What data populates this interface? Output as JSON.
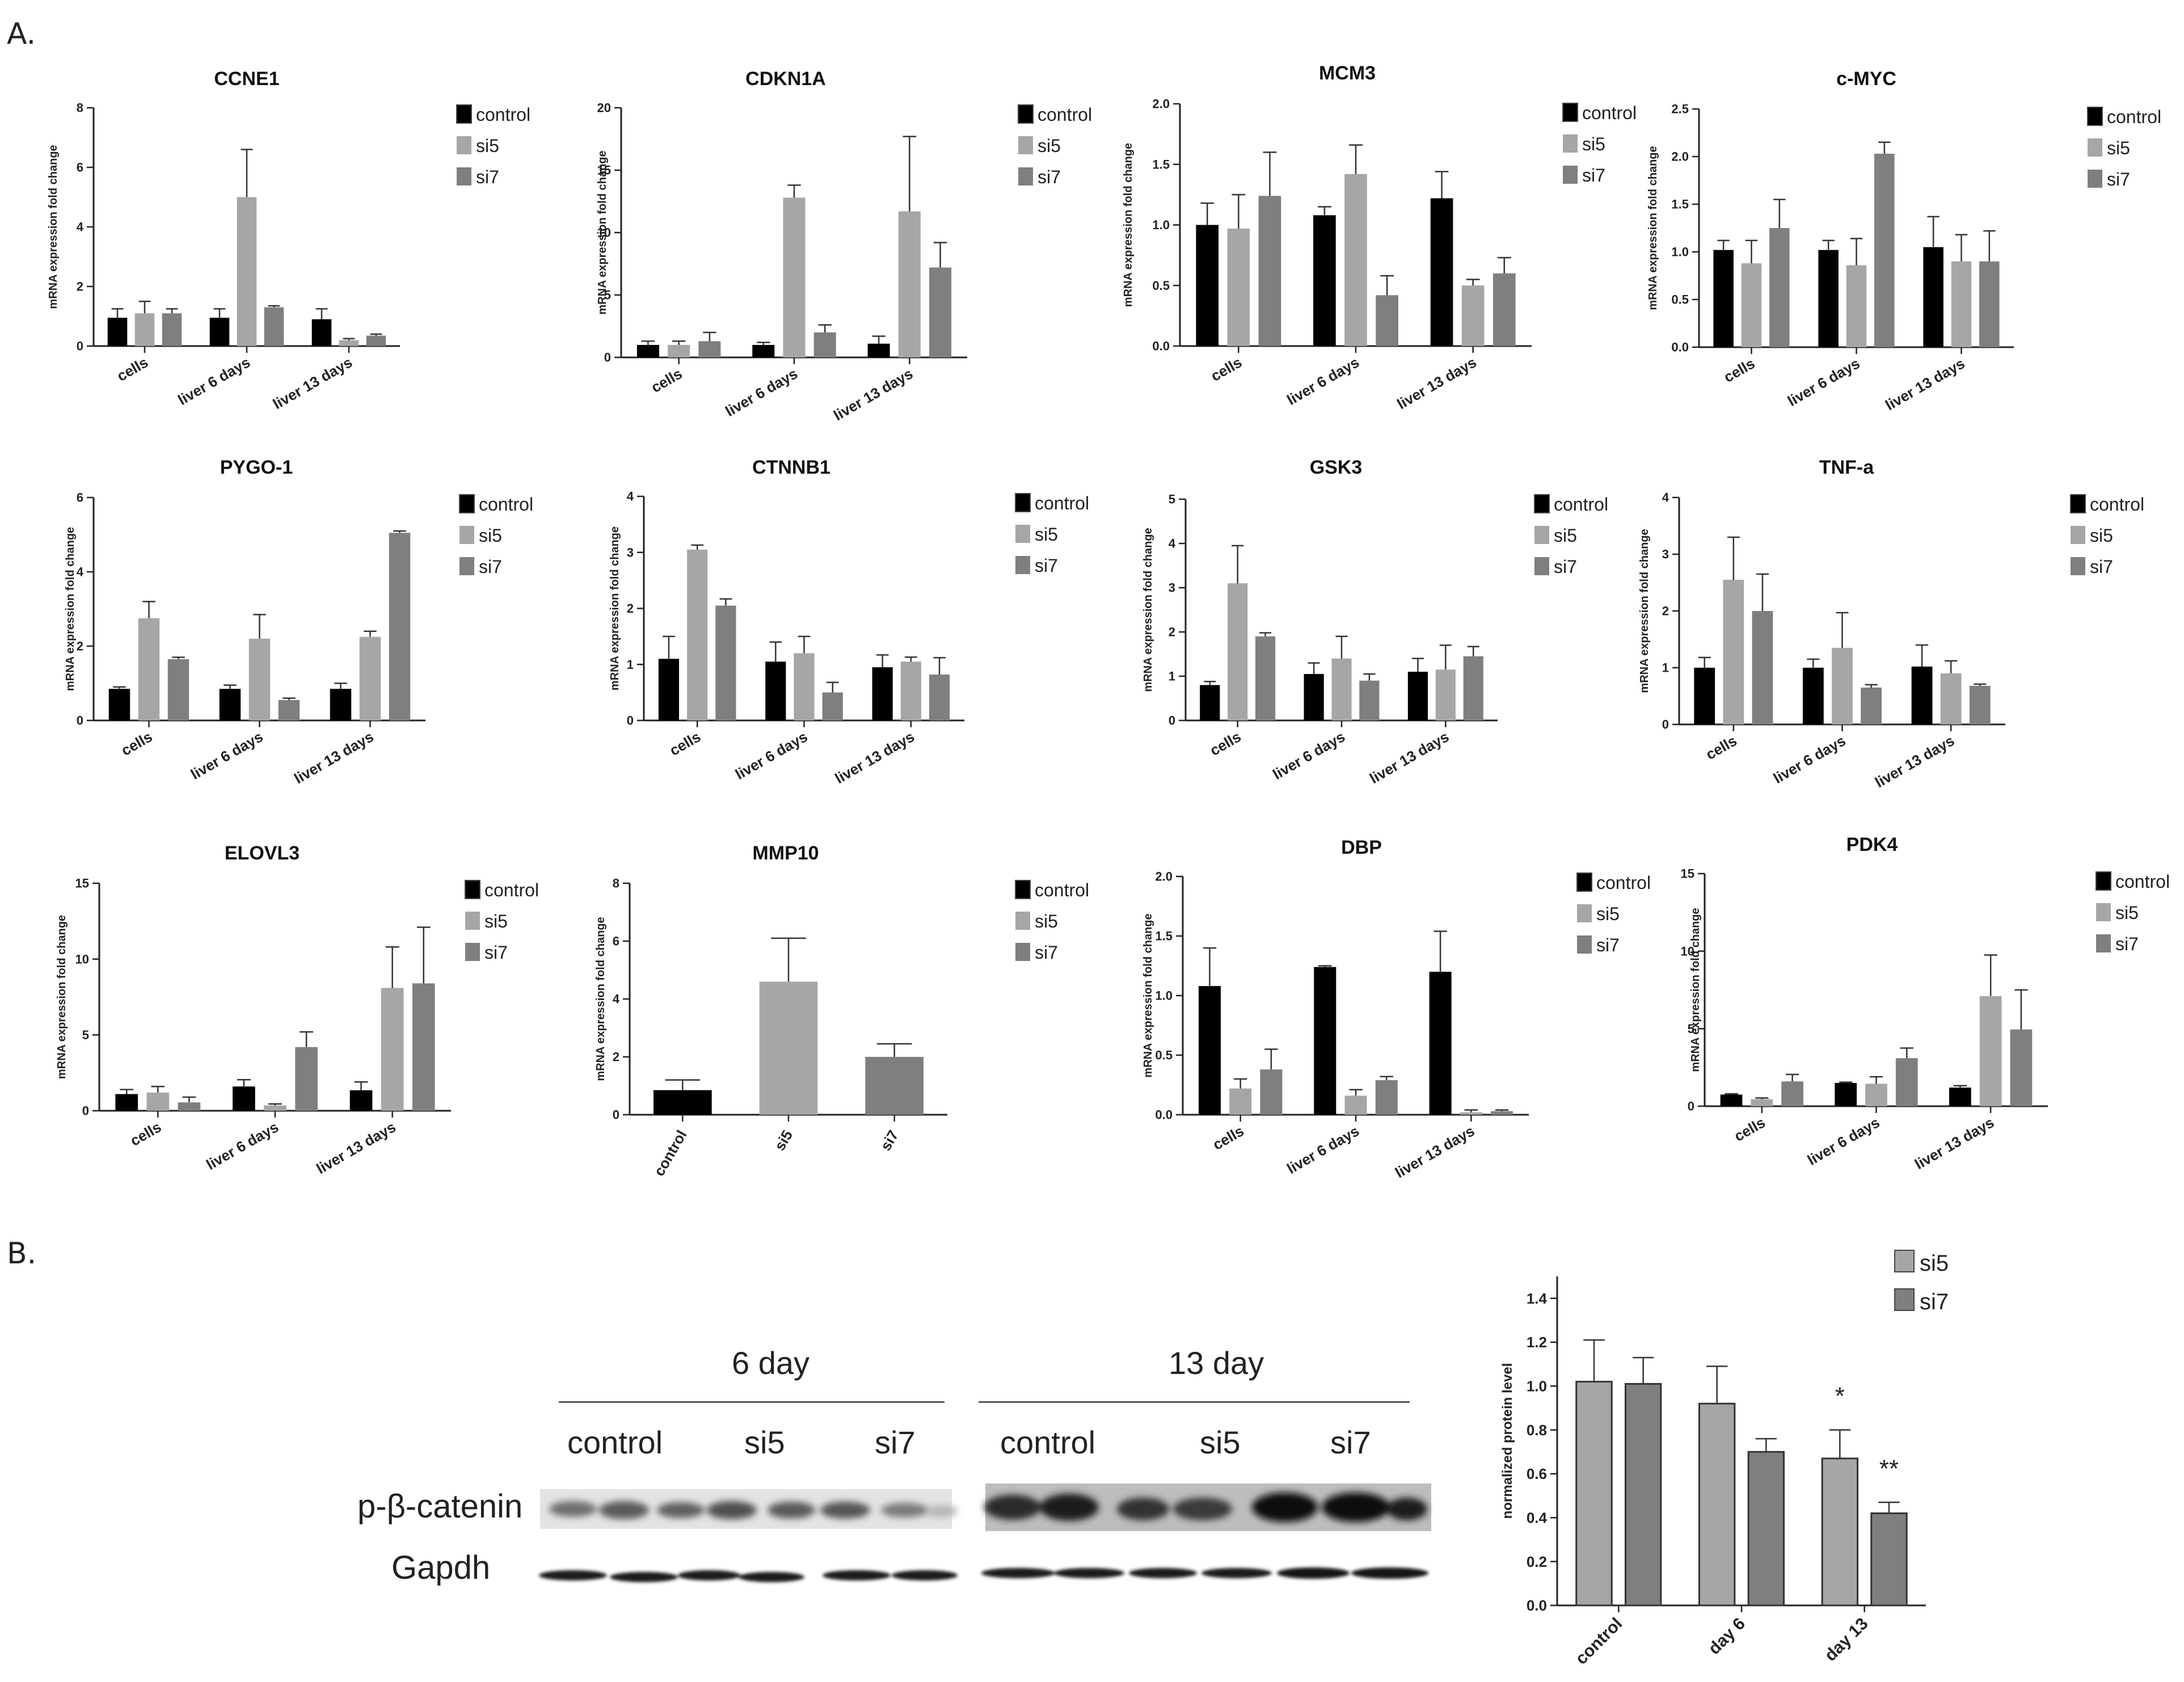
{
  "figure": {
    "panel_a_label": "A.",
    "panel_b_label": "B."
  },
  "colors": {
    "control": "#000000",
    "si5": "#a6a6a7",
    "si7": "#7f7f80",
    "axis": "#222222"
  },
  "chart_data": [
    {
      "type": "bar",
      "title": "CCNE1",
      "ylabel": "mRNA expression fold change",
      "categories": [
        "cells",
        "liver 6 days",
        "liver 13 days"
      ],
      "ylim": [
        0,
        8
      ],
      "yticks": [
        0,
        2,
        4,
        6,
        8
      ],
      "legend": "right",
      "series": [
        {
          "name": "control",
          "values": [
            0.95,
            0.95,
            0.9
          ],
          "errors": [
            0.3,
            0.3,
            0.35
          ]
        },
        {
          "name": "si5",
          "values": [
            1.1,
            5.0,
            0.2
          ],
          "errors": [
            0.4,
            1.6,
            0.05
          ]
        },
        {
          "name": "si7",
          "values": [
            1.1,
            1.3,
            0.35
          ],
          "errors": [
            0.15,
            0.05,
            0.05
          ]
        }
      ]
    },
    {
      "type": "bar",
      "title": "CDKN1A",
      "ylabel": "mRNA expression fold change",
      "categories": [
        "cells",
        "liver 6 days",
        "liver 13 days"
      ],
      "ylim": [
        0,
        20
      ],
      "yticks": [
        0,
        5,
        10,
        15,
        20
      ],
      "legend": "right",
      "series": [
        {
          "name": "control",
          "values": [
            1.0,
            1.0,
            1.1
          ],
          "errors": [
            0.3,
            0.2,
            0.6
          ]
        },
        {
          "name": "si5",
          "values": [
            1.0,
            12.8,
            11.7
          ],
          "errors": [
            0.3,
            1.0,
            6.0
          ]
        },
        {
          "name": "si7",
          "values": [
            1.3,
            2.0,
            7.2
          ],
          "errors": [
            0.7,
            0.6,
            2.0
          ]
        }
      ]
    },
    {
      "type": "bar",
      "title": "MCM3",
      "ylabel": "mRNA expression fold change",
      "categories": [
        "cells",
        "liver 6 days",
        "liver 13 days"
      ],
      "ylim": [
        0,
        2.0
      ],
      "yticks": [
        0.0,
        0.5,
        1.0,
        1.5,
        2.0
      ],
      "legend": "right",
      "series": [
        {
          "name": "control",
          "values": [
            1.0,
            1.08,
            1.22
          ],
          "errors": [
            0.18,
            0.07,
            0.22
          ]
        },
        {
          "name": "si5",
          "values": [
            0.97,
            1.42,
            0.5
          ],
          "errors": [
            0.28,
            0.24,
            0.05
          ]
        },
        {
          "name": "si7",
          "values": [
            1.24,
            0.42,
            0.6
          ],
          "errors": [
            0.36,
            0.16,
            0.13
          ]
        }
      ]
    },
    {
      "type": "bar",
      "title": "c-MYC",
      "ylabel": "mRNA expression fold change",
      "categories": [
        "cells",
        "liver 6 days",
        "liver 13 days"
      ],
      "ylim": [
        0,
        2.5
      ],
      "yticks": [
        0.0,
        0.5,
        1.0,
        1.5,
        2.0,
        2.5
      ],
      "legend": "right",
      "series": [
        {
          "name": "control",
          "values": [
            1.02,
            1.02,
            1.05
          ],
          "errors": [
            0.1,
            0.1,
            0.32
          ]
        },
        {
          "name": "si5",
          "values": [
            0.88,
            0.86,
            0.9
          ],
          "errors": [
            0.24,
            0.28,
            0.28
          ]
        },
        {
          "name": "si7",
          "values": [
            1.25,
            2.03,
            0.9
          ],
          "errors": [
            0.3,
            0.12,
            0.32
          ]
        }
      ]
    },
    {
      "type": "bar",
      "title": "PYGO-1",
      "ylabel": "mRNA expression fold change",
      "categories": [
        "cells",
        "liver 6 days",
        "liver 13 days"
      ],
      "ylim": [
        0,
        6
      ],
      "yticks": [
        0,
        2,
        4,
        6
      ],
      "legend": "right",
      "series": [
        {
          "name": "control",
          "values": [
            0.85,
            0.85,
            0.85
          ],
          "errors": [
            0.05,
            0.1,
            0.15
          ]
        },
        {
          "name": "si5",
          "values": [
            2.75,
            2.2,
            2.25
          ],
          "errors": [
            0.45,
            0.65,
            0.15
          ]
        },
        {
          "name": "si7",
          "values": [
            1.65,
            0.55,
            5.05
          ],
          "errors": [
            0.05,
            0.05,
            0.05
          ]
        }
      ]
    },
    {
      "type": "bar",
      "title": "CTNNB1",
      "ylabel": "mRNA expression fold change",
      "categories": [
        "cells",
        "liver 6 days",
        "liver 13 days"
      ],
      "ylim": [
        0,
        4
      ],
      "yticks": [
        0,
        1,
        2,
        3,
        4
      ],
      "legend": "right",
      "series": [
        {
          "name": "control",
          "values": [
            1.1,
            1.05,
            0.95
          ],
          "errors": [
            0.4,
            0.35,
            0.22
          ]
        },
        {
          "name": "si5",
          "values": [
            3.05,
            1.2,
            1.05
          ],
          "errors": [
            0.08,
            0.3,
            0.08
          ]
        },
        {
          "name": "si7",
          "values": [
            2.05,
            0.5,
            0.82
          ],
          "errors": [
            0.12,
            0.18,
            0.3
          ]
        }
      ]
    },
    {
      "type": "bar",
      "title": "GSK3",
      "ylabel": "mRNA expression fold change",
      "categories": [
        "cells",
        "liver 6 days",
        "liver 13 days"
      ],
      "ylim": [
        0,
        5
      ],
      "yticks": [
        0,
        1,
        2,
        3,
        4,
        5
      ],
      "legend": "right",
      "series": [
        {
          "name": "control",
          "values": [
            0.8,
            1.05,
            1.1
          ],
          "errors": [
            0.08,
            0.25,
            0.3
          ]
        },
        {
          "name": "si5",
          "values": [
            3.1,
            1.4,
            1.15
          ],
          "errors": [
            0.85,
            0.5,
            0.55
          ]
        },
        {
          "name": "si7",
          "values": [
            1.9,
            0.9,
            1.45
          ],
          "errors": [
            0.08,
            0.15,
            0.22
          ]
        }
      ]
    },
    {
      "type": "bar",
      "title": "TNF-a",
      "ylabel": "mRNA expression fold change",
      "categories": [
        "cells",
        "liver 6 days",
        "liver 13 days"
      ],
      "ylim": [
        0,
        4
      ],
      "yticks": [
        0,
        1,
        2,
        3,
        4
      ],
      "legend": "right",
      "series": [
        {
          "name": "control",
          "values": [
            1.0,
            1.0,
            1.02
          ],
          "errors": [
            0.18,
            0.15,
            0.38
          ]
        },
        {
          "name": "si5",
          "values": [
            2.55,
            1.35,
            0.9
          ],
          "errors": [
            0.75,
            0.62,
            0.22
          ]
        },
        {
          "name": "si7",
          "values": [
            2.0,
            0.65,
            0.68
          ],
          "errors": [
            0.65,
            0.05,
            0.03
          ]
        }
      ]
    },
    {
      "type": "bar",
      "title": "ELOVL3",
      "ylabel": "mRNA expression fold change",
      "categories": [
        "cells",
        "liver 6 days",
        "liver 13 days"
      ],
      "ylim": [
        0,
        15
      ],
      "yticks": [
        0,
        5,
        10,
        15
      ],
      "legend": "right",
      "series": [
        {
          "name": "control",
          "values": [
            1.1,
            1.6,
            1.35
          ],
          "errors": [
            0.3,
            0.45,
            0.55
          ]
        },
        {
          "name": "si5",
          "values": [
            1.2,
            0.35,
            8.1
          ],
          "errors": [
            0.4,
            0.1,
            2.7
          ]
        },
        {
          "name": "si7",
          "values": [
            0.55,
            4.2,
            8.4
          ],
          "errors": [
            0.35,
            1.0,
            3.7
          ]
        }
      ]
    },
    {
      "type": "bar",
      "title": "MMP10",
      "ylabel": "mRNA expression fold change",
      "categories": [
        "control",
        "si5",
        "si7"
      ],
      "ylim": [
        0,
        8
      ],
      "yticks": [
        0,
        2,
        4,
        6,
        8
      ],
      "legend": "right",
      "legend_entries": [
        "control",
        "si5",
        "si7"
      ],
      "series": [
        {
          "name": "",
          "values": [
            0.85,
            4.6,
            2.0
          ],
          "errors": [
            0.35,
            1.5,
            0.45
          ],
          "colors": [
            "#000000",
            "#a6a6a7",
            "#7f7f80"
          ]
        }
      ]
    },
    {
      "type": "bar",
      "title": "DBP",
      "ylabel": "mRNA expression fold change",
      "categories": [
        "cells",
        "liver 6 days",
        "liver 13 days"
      ],
      "ylim": [
        0,
        2.0
      ],
      "yticks": [
        0.0,
        0.5,
        1.0,
        1.5,
        2.0
      ],
      "legend": "right",
      "series": [
        {
          "name": "control",
          "values": [
            1.08,
            1.24,
            1.2
          ],
          "errors": [
            0.32,
            0.01,
            0.34
          ]
        },
        {
          "name": "si5",
          "values": [
            0.22,
            0.16,
            0.02
          ],
          "errors": [
            0.08,
            0.05,
            0.02
          ]
        },
        {
          "name": "si7",
          "values": [
            0.38,
            0.29,
            0.03
          ],
          "errors": [
            0.17,
            0.03,
            0.01
          ]
        }
      ]
    },
    {
      "type": "bar",
      "title": "PDK4",
      "ylabel": "mRNA expression fold change",
      "categories": [
        "cells",
        "liver 6 days",
        "liver 13 days"
      ],
      "ylim": [
        0,
        15
      ],
      "yticks": [
        0,
        5,
        10,
        15
      ],
      "legend": "right",
      "series": [
        {
          "name": "control",
          "values": [
            0.75,
            1.5,
            1.2
          ],
          "errors": [
            0.05,
            0.05,
            0.12
          ]
        },
        {
          "name": "si5",
          "values": [
            0.45,
            1.45,
            7.1
          ],
          "errors": [
            0.08,
            0.45,
            2.65
          ]
        },
        {
          "name": "si7",
          "values": [
            1.6,
            3.1,
            4.95
          ],
          "errors": [
            0.45,
            0.65,
            2.55
          ]
        }
      ]
    },
    {
      "type": "bar",
      "title": "",
      "ylabel": "normalized protein level",
      "categories": [
        "control",
        "day 6",
        "day 13"
      ],
      "ylim": [
        0,
        1.5
      ],
      "yticks": [
        0.0,
        0.2,
        0.4,
        0.6,
        0.8,
        1.0,
        1.2,
        1.4
      ],
      "legend": "top-right",
      "annotations": [
        "*",
        "**"
      ],
      "series": [
        {
          "name": "si5",
          "values": [
            1.02,
            0.92,
            0.67
          ],
          "errors": [
            0.19,
            0.17,
            0.13
          ]
        },
        {
          "name": "si7",
          "values": [
            1.01,
            0.7,
            0.42
          ],
          "errors": [
            0.12,
            0.06,
            0.05
          ]
        }
      ]
    }
  ],
  "blot": {
    "group_labels": [
      "6 day",
      "13 day"
    ],
    "lane_labels": [
      "control",
      "si5",
      "si7",
      "control",
      "si5",
      "si7"
    ],
    "row_labels": [
      "p-β-catenin",
      "Gapdh"
    ]
  }
}
